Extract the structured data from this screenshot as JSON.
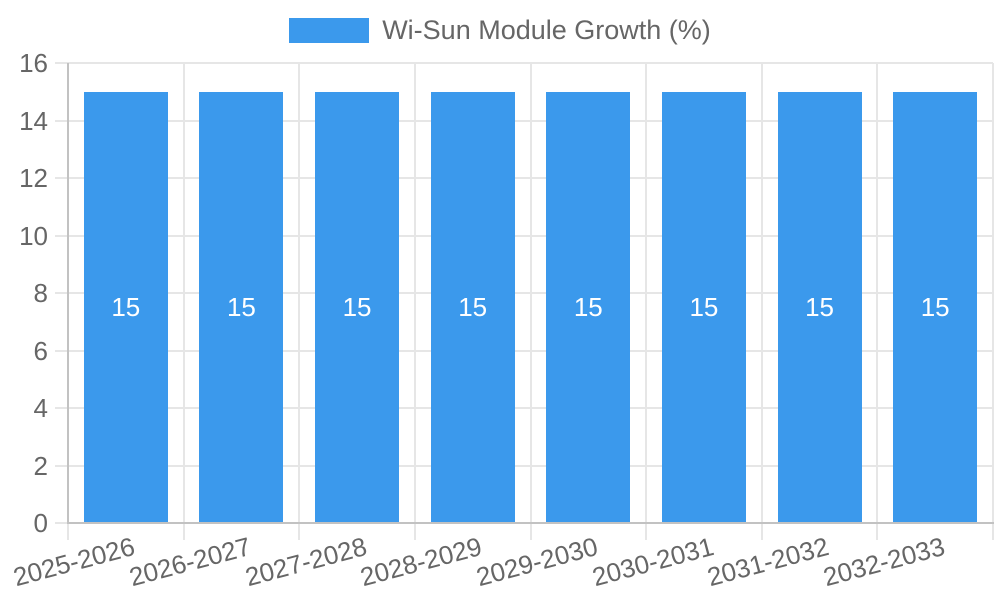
{
  "chart_data": {
    "type": "bar",
    "title": "Wi-Sun Module Growth (%)",
    "legend": "Wi-Sun Module Growth (%)",
    "legend_position": "top",
    "categories": [
      "2025-2026",
      "2026-2027",
      "2027-2028",
      "2028-2029",
      "2029-2030",
      "2030-2031",
      "2031-2032",
      "2032-2033"
    ],
    "values": [
      15,
      15,
      15,
      15,
      15,
      15,
      15,
      15
    ],
    "bar_value_labels": [
      "15",
      "15",
      "15",
      "15",
      "15",
      "15",
      "15",
      "15"
    ],
    "xlabel": "",
    "ylabel": "",
    "ylim": [
      0,
      16
    ],
    "yticks": [
      0,
      2,
      4,
      6,
      8,
      10,
      12,
      14,
      16
    ],
    "grid": true,
    "colors": {
      "bar": "#3b99ec",
      "gridline": "#e6e6e6",
      "axis_line": "#c2c2c2",
      "tick_label": "#666666",
      "legend_text": "#666666",
      "bar_label": "#ffffff",
      "background": "#ffffff"
    }
  }
}
